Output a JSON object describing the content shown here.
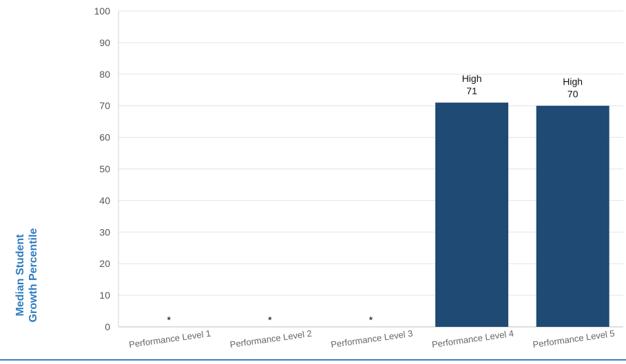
{
  "chart_data": {
    "type": "bar",
    "ylabel_line1": "Median Student",
    "ylabel_line2": "Growth Percentile",
    "ylim": [
      0,
      100
    ],
    "yticks": [
      "0",
      "10",
      "20",
      "30",
      "40",
      "50",
      "60",
      "70",
      "80",
      "90",
      "100"
    ],
    "categories": [
      "Performance Level 1",
      "Performance Level 2",
      "Performance Level 3",
      "Performance Level 4",
      "Performance Level 5"
    ],
    "values": [
      null,
      null,
      null,
      71,
      70
    ],
    "bar_labels": [
      {
        "top": "",
        "bottom": "*"
      },
      {
        "top": "",
        "bottom": "*"
      },
      {
        "top": "",
        "bottom": "*"
      },
      {
        "top": "High",
        "bottom": "71"
      },
      {
        "top": "High",
        "bottom": "70"
      }
    ],
    "bar_color": "#1f4a73",
    "grid": true
  }
}
